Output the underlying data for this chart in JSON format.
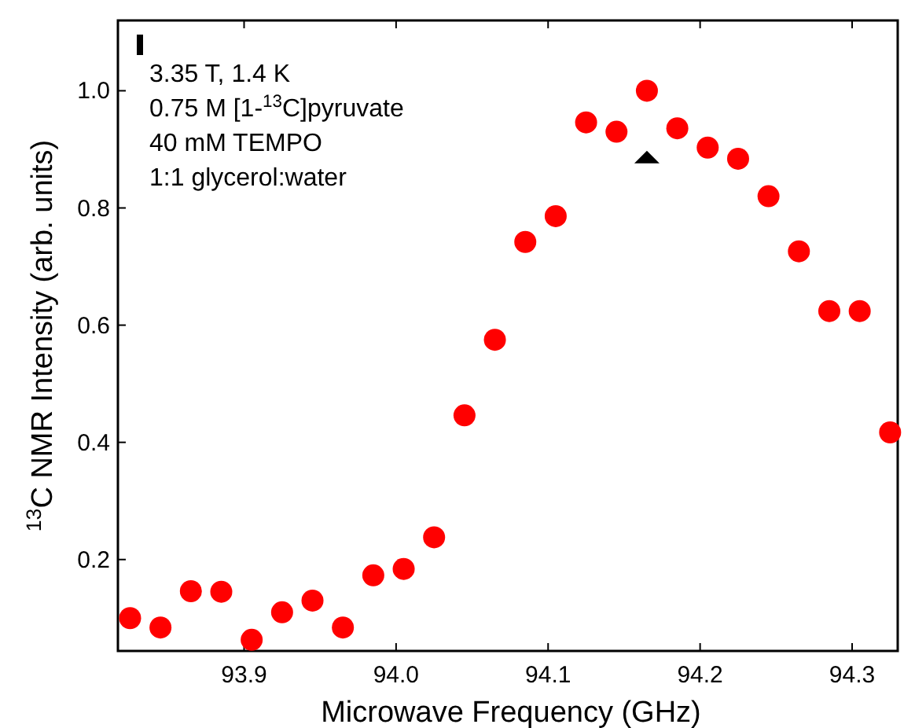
{
  "chart_data": {
    "type": "scatter",
    "xlabel": "Microwave Frequency (GHz)",
    "ylabel": "$^{13}$C NMR Intensity (arb. units)",
    "annotations": [
      "3.35 T, 1.4 K",
      "0.75 M [1-$^{13}$C]pyruvate",
      "40 mM TEMPO",
      "1:1 glycerol:water"
    ],
    "xlim": [
      93.817,
      94.33
    ],
    "xticks": [
      93.9,
      {
        "value": 94.0,
        "label": "94.0"
      },
      94.1,
      94.2,
      94.3
    ],
    "ylim": [
      0.044,
      1.12
    ],
    "yticks": [
      0.2,
      0.4,
      0.6,
      0.8,
      {
        "value": 1.0,
        "label": "1.0"
      }
    ],
    "grid": false,
    "series": [
      {
        "color": "#ff0000",
        "marker": "circle",
        "x": [
          93.825,
          93.845,
          93.865,
          93.885,
          93.905,
          93.925,
          93.945,
          93.965,
          93.985,
          94.005,
          94.025,
          94.045,
          94.065,
          94.085,
          94.105,
          94.125,
          94.145,
          94.165,
          94.185,
          94.205,
          94.225,
          94.245,
          94.265,
          94.285,
          94.305,
          94.325
        ],
        "values": [
          0.1,
          0.084,
          0.146,
          0.145,
          0.063,
          0.11,
          0.13,
          0.084,
          0.173,
          0.184,
          0.238,
          0.446,
          0.575,
          0.742,
          0.786,
          0.946,
          0.93,
          1.0,
          0.936,
          0.903,
          0.884,
          0.82,
          0.726,
          0.624,
          0.624,
          0.417
        ]
      },
      {
        "color": "#000000",
        "marker": "triangle",
        "x": [
          94.165
        ],
        "values": [
          0.887
        ]
      }
    ]
  }
}
